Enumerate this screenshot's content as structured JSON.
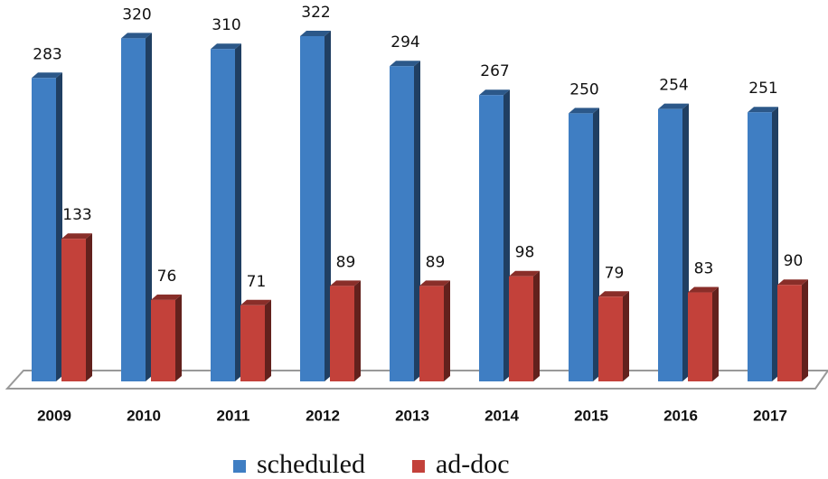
{
  "chart_data": {
    "type": "bar3d",
    "categories": [
      "2009",
      "2010",
      "2011",
      "2012",
      "2013",
      "2014",
      "2015",
      "2016",
      "2017"
    ],
    "series": [
      {
        "name": "scheduled",
        "color": "#3f7ec3",
        "values": [
          283,
          320,
          310,
          322,
          294,
          267,
          250,
          254,
          251
        ]
      },
      {
        "name": "ad-doc",
        "color": "#c3413a",
        "values": [
          133,
          76,
          71,
          89,
          89,
          98,
          79,
          83,
          90
        ]
      }
    ],
    "legend": "bottom"
  }
}
